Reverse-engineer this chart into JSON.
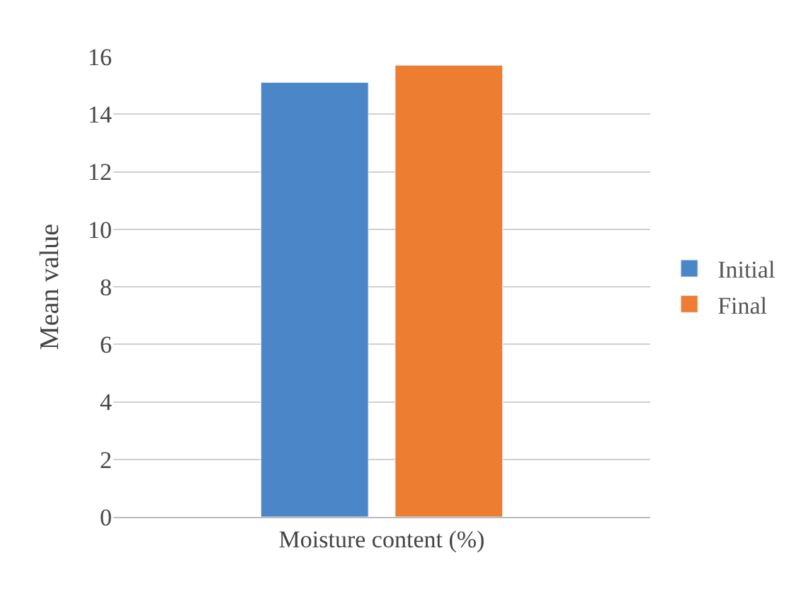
{
  "chart_data": {
    "type": "bar",
    "ylabel": "Mean value",
    "categories": [
      "Moisture content (%)"
    ],
    "series": [
      {
        "name": "Initial",
        "color": "#4a86c8",
        "values": [
          15.1
        ]
      },
      {
        "name": "Final",
        "color": "#ed7d31",
        "values": [
          15.7
        ]
      }
    ],
    "ylim": [
      0,
      16
    ],
    "yticks": [
      0,
      2,
      4,
      6,
      8,
      10,
      12,
      14,
      16
    ],
    "grid": "y",
    "legend": "right"
  }
}
